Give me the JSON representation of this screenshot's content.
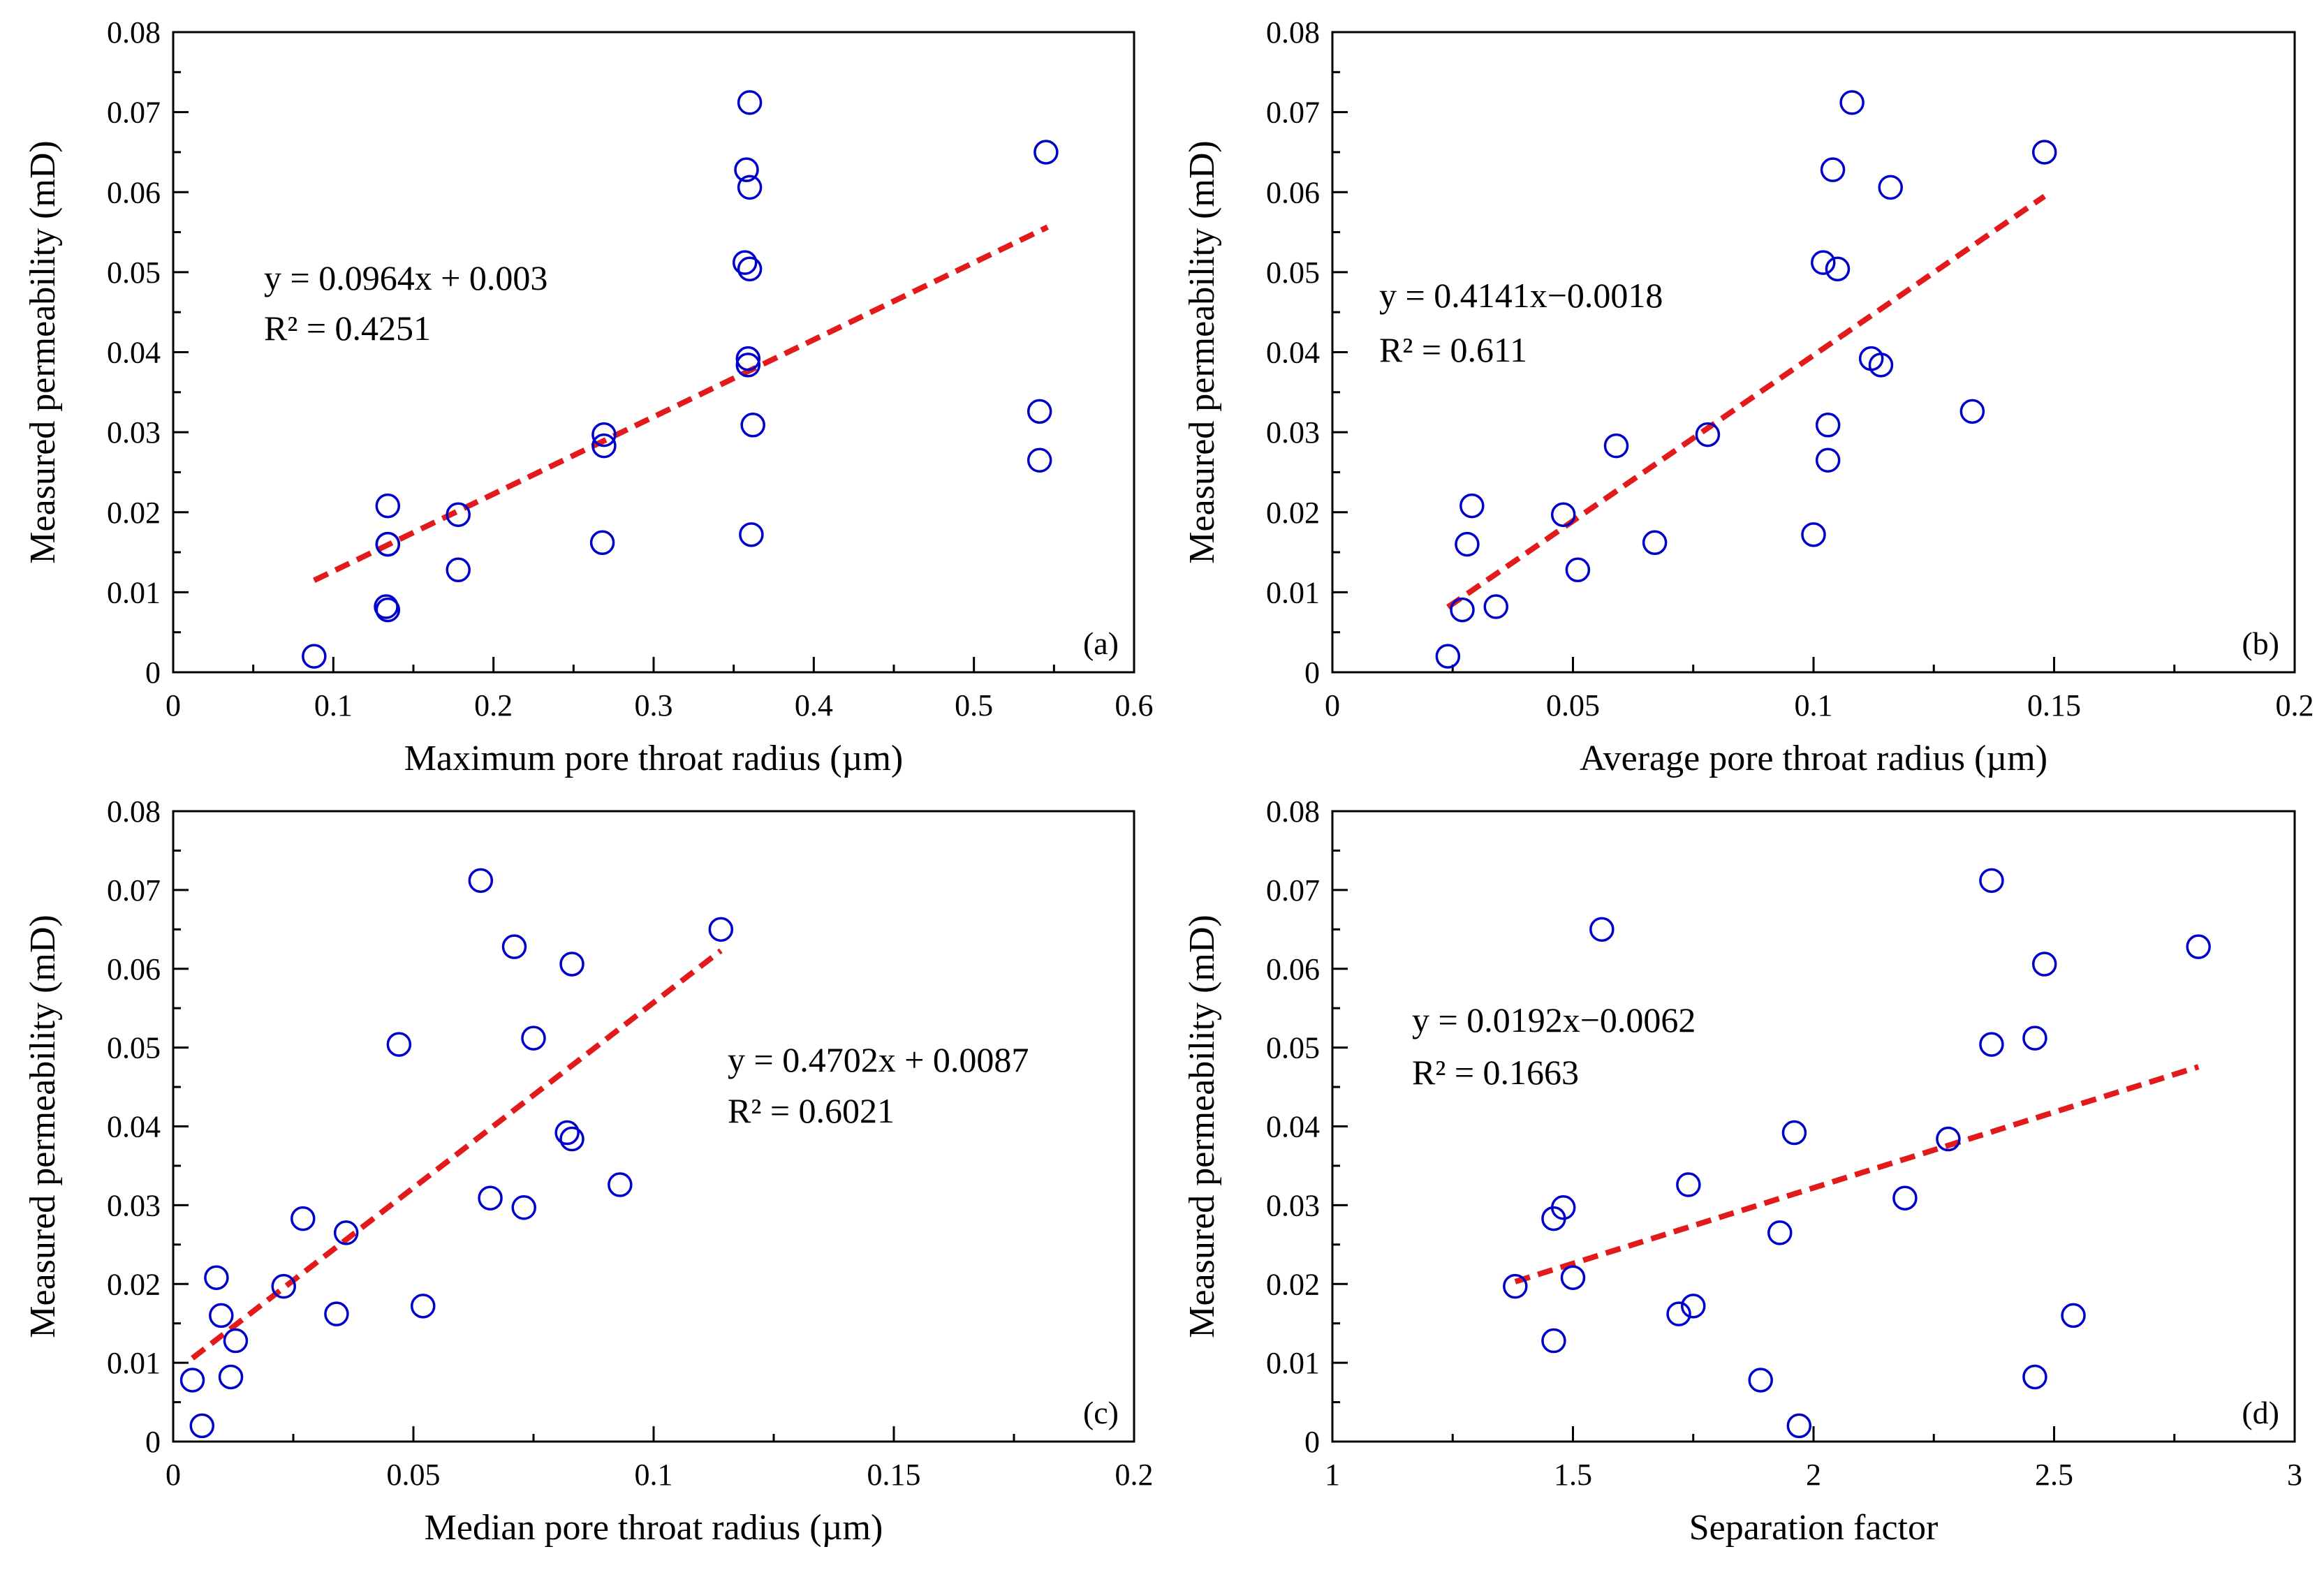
{
  "figure": {
    "description_hidden": null
  },
  "styles": {
    "marker_color": "#0000CC",
    "trend_color": "#E31A1C",
    "axis_color": "#000000"
  },
  "chart_data": [
    {
      "type": "scatter",
      "panel_label": "(a)",
      "xlabel": "Maximum pore throat radius (µm)",
      "ylabel": "Measured permeability (mD)",
      "xlim": [
        0,
        0.6
      ],
      "ylim": [
        0,
        0.08
      ],
      "xticks": [
        0,
        0.1,
        0.2,
        0.3,
        0.4,
        0.5,
        0.6
      ],
      "xtick_labels": [
        "0",
        "0.1",
        "0.2",
        "0.3",
        "0.4",
        "0.5",
        "0.6"
      ],
      "yticks": [
        0,
        0.01,
        0.02,
        0.03,
        0.04,
        0.05,
        0.06,
        0.07,
        0.08
      ],
      "ytick_labels": [
        "0",
        "0.01",
        "0.02",
        "0.03",
        "0.04",
        "0.05",
        "0.06",
        "0.07",
        "0.08"
      ],
      "equation": "y = 0.0964x + 0.003",
      "r2": "R² = 0.4251",
      "trend": {
        "slope": 0.0964,
        "intercept": 0.003,
        "x_range": [
          0.088,
          0.546
        ]
      },
      "x": [
        0.088,
        0.134,
        0.133,
        0.134,
        0.134,
        0.134,
        0.178,
        0.178,
        0.268,
        0.269,
        0.269,
        0.357,
        0.358,
        0.359,
        0.359,
        0.36,
        0.36,
        0.36,
        0.361,
        0.362,
        0.541,
        0.541,
        0.545
      ],
      "y": [
        0.002,
        0.0078,
        0.0082,
        0.016,
        0.016,
        0.0208,
        0.0128,
        0.0197,
        0.0162,
        0.0283,
        0.0297,
        0.0512,
        0.0628,
        0.0384,
        0.0392,
        0.0504,
        0.0606,
        0.0712,
        0.0172,
        0.0309,
        0.0265,
        0.0326,
        0.065
      ]
    },
    {
      "type": "scatter",
      "panel_label": "(b)",
      "xlabel": "Average pore throat radius (µm)",
      "ylabel": "Measured permeability (mD)",
      "xlim": [
        0,
        0.2
      ],
      "ylim": [
        0,
        0.08
      ],
      "xticks": [
        0,
        0.05,
        0.1,
        0.15,
        0.2
      ],
      "xtick_labels": [
        "0",
        "0.05",
        "0.1",
        "0.15",
        "0.2"
      ],
      "yticks": [
        0,
        0.01,
        0.02,
        0.03,
        0.04,
        0.05,
        0.06,
        0.07,
        0.08
      ],
      "ytick_labels": [
        "0",
        "0.01",
        "0.02",
        "0.03",
        "0.04",
        "0.05",
        "0.06",
        "0.07",
        "0.08"
      ],
      "equation": "y = 0.4141x−0.0018",
      "r2": "R² = 0.611",
      "trend": {
        "slope": 0.4141,
        "intercept": -0.0018,
        "x_range": [
          0.024,
          0.148
        ]
      },
      "x": [
        0.024,
        0.027,
        0.028,
        0.029,
        0.034,
        0.048,
        0.051,
        0.059,
        0.067,
        0.078,
        0.1,
        0.102,
        0.103,
        0.103,
        0.104,
        0.105,
        0.108,
        0.112,
        0.114,
        0.116,
        0.133,
        0.148
      ],
      "y": [
        0.002,
        0.0078,
        0.016,
        0.0208,
        0.0082,
        0.0197,
        0.0128,
        0.0283,
        0.0162,
        0.0297,
        0.0172,
        0.0512,
        0.0309,
        0.0265,
        0.0628,
        0.0504,
        0.0712,
        0.0392,
        0.0384,
        0.0606,
        0.0326,
        0.065
      ]
    },
    {
      "type": "scatter",
      "panel_label": "(c)",
      "xlabel": "Median pore throat radius (µm)",
      "ylabel": "Measured permeability (mD)",
      "xlim": [
        0,
        0.2
      ],
      "ylim": [
        0,
        0.08
      ],
      "xticks": [
        0,
        0.05,
        0.1,
        0.15,
        0.2
      ],
      "xtick_labels": [
        "0",
        "0.05",
        "0.1",
        "0.15",
        "0.2"
      ],
      "yticks": [
        0,
        0.01,
        0.02,
        0.03,
        0.04,
        0.05,
        0.06,
        0.07,
        0.08
      ],
      "ytick_labels": [
        "0",
        "0.01",
        "0.02",
        "0.03",
        "0.04",
        "0.05",
        "0.06",
        "0.07",
        "0.08"
      ],
      "equation": "y = 0.4702x + 0.0087",
      "r2": "R² = 0.6021",
      "trend": {
        "slope": 0.4702,
        "intercept": 0.0087,
        "x_range": [
          0.004,
          0.114
        ]
      },
      "x": [
        0.004,
        0.006,
        0.009,
        0.01,
        0.012,
        0.013,
        0.023,
        0.027,
        0.034,
        0.036,
        0.047,
        0.052,
        0.064,
        0.066,
        0.071,
        0.073,
        0.075,
        0.082,
        0.083,
        0.083,
        0.093,
        0.114
      ],
      "y": [
        0.0078,
        0.002,
        0.0208,
        0.016,
        0.0082,
        0.0128,
        0.0197,
        0.0283,
        0.0162,
        0.0265,
        0.0504,
        0.0172,
        0.0712,
        0.0309,
        0.0628,
        0.0297,
        0.0512,
        0.0392,
        0.0384,
        0.0606,
        0.0326,
        0.065
      ]
    },
    {
      "type": "scatter",
      "panel_label": "(d)",
      "xlabel": "Separation factor",
      "ylabel": "Measured permeability (mD)",
      "xlim": [
        1,
        3
      ],
      "ylim": [
        0,
        0.08
      ],
      "xticks": [
        1,
        1.5,
        2,
        2.5,
        3
      ],
      "xtick_labels": [
        "1",
        "1.5",
        "2",
        "2.5",
        "3"
      ],
      "yticks": [
        0,
        0.01,
        0.02,
        0.03,
        0.04,
        0.05,
        0.06,
        0.07,
        0.08
      ],
      "ytick_labels": [
        "0",
        "0.01",
        "0.02",
        "0.03",
        "0.04",
        "0.05",
        "0.06",
        "0.07",
        "0.08"
      ],
      "equation": "y = 0.0192x−0.0062",
      "r2": "R² = 0.1663",
      "trend": {
        "slope": 0.0192,
        "intercept": -0.0062,
        "x_range": [
          1.38,
          2.8
        ]
      },
      "x": [
        1.38,
        1.46,
        1.46,
        1.48,
        1.5,
        1.56,
        1.72,
        1.74,
        1.75,
        1.89,
        1.93,
        1.96,
        1.97,
        2.19,
        2.28,
        2.37,
        2.37,
        2.46,
        2.46,
        2.48,
        2.54,
        2.8
      ],
      "y": [
        0.0197,
        0.0128,
        0.0283,
        0.0297,
        0.0208,
        0.065,
        0.0162,
        0.0326,
        0.0172,
        0.0078,
        0.0265,
        0.0392,
        0.002,
        0.0309,
        0.0384,
        0.0712,
        0.0504,
        0.0082,
        0.0512,
        0.0606,
        0.016,
        0.0628
      ]
    }
  ]
}
